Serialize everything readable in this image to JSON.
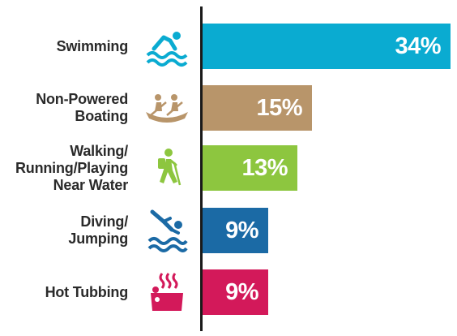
{
  "chart_data": {
    "type": "bar",
    "orientation": "horizontal",
    "categories": [
      "Swimming",
      "Non-Powered\nBoating",
      "Walking/\nRunning/Playing\nNear Water",
      "Diving/\nJumping",
      "Hot Tubbing"
    ],
    "values": [
      34,
      15,
      13,
      9,
      9
    ],
    "value_labels": [
      "34%",
      "15%",
      "13%",
      "9%",
      "9%"
    ],
    "unit": "%",
    "icons": [
      "swimmer-icon",
      "canoe-icon",
      "hiker-icon",
      "diver-icon",
      "hot-tub-icon"
    ],
    "colors": [
      "#0aabd1",
      "#b8956a",
      "#8dc63f",
      "#1b6aa5",
      "#d3195a"
    ],
    "title": "",
    "xlabel": "",
    "ylabel": "",
    "xlim": [
      0,
      34
    ],
    "grid": false,
    "legend": "none"
  }
}
